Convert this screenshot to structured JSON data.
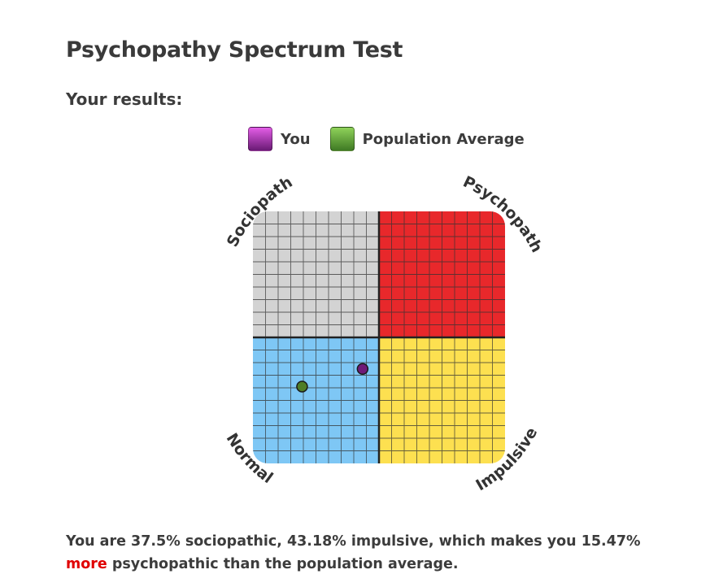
{
  "page": {
    "title": "Psychopathy Spectrum Test",
    "subtitle": "Your results:"
  },
  "legend": {
    "items": [
      {
        "label": "You",
        "color": "#8b2a93"
      },
      {
        "label": "Population Average",
        "color": "#5a8f33"
      }
    ]
  },
  "result": {
    "part1": "You are 37.5% sociopathic, 43.18% impulsive, which makes you 15.47% ",
    "highlight": "more",
    "part2": " psychopathic than the population average.",
    "highlight_color": "#e00000"
  },
  "chart_data": {
    "type": "scatter",
    "title": "Psychopathy Spectrum Test",
    "quadrants": [
      {
        "label": "Sociopath",
        "position": "top-left",
        "color": "#d3d3d3"
      },
      {
        "label": "Psychopath",
        "position": "top-right",
        "color": "#e8282b"
      },
      {
        "label": "Normal",
        "position": "bottom-left",
        "color": "#7ec7f5"
      },
      {
        "label": "Impulsive",
        "position": "bottom-right",
        "color": "#fde050"
      }
    ],
    "x_axis": {
      "label": "Impulsive",
      "range": [
        -100,
        100
      ]
    },
    "y_axis": {
      "label": "Sociopathic",
      "range": [
        -100,
        100
      ]
    },
    "grid": {
      "on": true,
      "cells_per_quadrant": 10
    },
    "series": [
      {
        "name": "You",
        "x": -13,
        "y": -25,
        "color": "#6f1a78"
      },
      {
        "name": "Population Average",
        "x": -61,
        "y": -39,
        "color": "#4f7d27"
      }
    ],
    "legend_position": "top",
    "stats": {
      "sociopathic_pct": 37.5,
      "impulsive_pct": 43.18,
      "more_psychopathic_pct": 15.47
    }
  }
}
